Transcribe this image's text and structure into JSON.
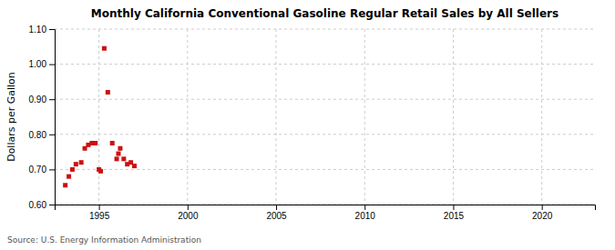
{
  "chart_data": {
    "type": "scatter",
    "title": "Monthly California Conventional Gasoline Regular Retail Sales by All Sellers",
    "ylabel": "Dollars per Gallon",
    "annotations": [
      "Source: U.S. Energy Information Administration"
    ],
    "color": "#cc1111",
    "marker": "square",
    "grid": true,
    "xlim": [
      1992.5,
      2023
    ],
    "ylim": [
      0.6,
      1.1
    ],
    "xticks": [
      1995,
      2000,
      2005,
      2010,
      2015,
      2020
    ],
    "yticks": [
      {
        "value": 0.6,
        "label": "0.60"
      },
      {
        "value": 0.7,
        "label": "0.70"
      },
      {
        "value": 0.8,
        "label": "0.80"
      },
      {
        "value": 0.9,
        "label": "0.90"
      },
      {
        "value": 1.0,
        "label": "1.00"
      },
      {
        "value": 1.1,
        "label": "1.10"
      }
    ],
    "x": [
      1993.1,
      1993.3,
      1993.5,
      1993.7,
      1994.0,
      1994.2,
      1994.4,
      1994.6,
      1994.8,
      1995.0,
      1995.1,
      1995.3,
      1995.5,
      1995.75,
      1996.0,
      1996.1,
      1996.2,
      1996.4,
      1996.6,
      1996.8,
      1997.0
    ],
    "values": [
      0.655,
      0.68,
      0.7,
      0.715,
      0.72,
      0.76,
      0.77,
      0.775,
      0.775,
      0.7,
      0.695,
      1.045,
      0.92,
      0.775,
      0.73,
      0.745,
      0.76,
      0.73,
      0.715,
      0.72,
      0.71
    ]
  }
}
